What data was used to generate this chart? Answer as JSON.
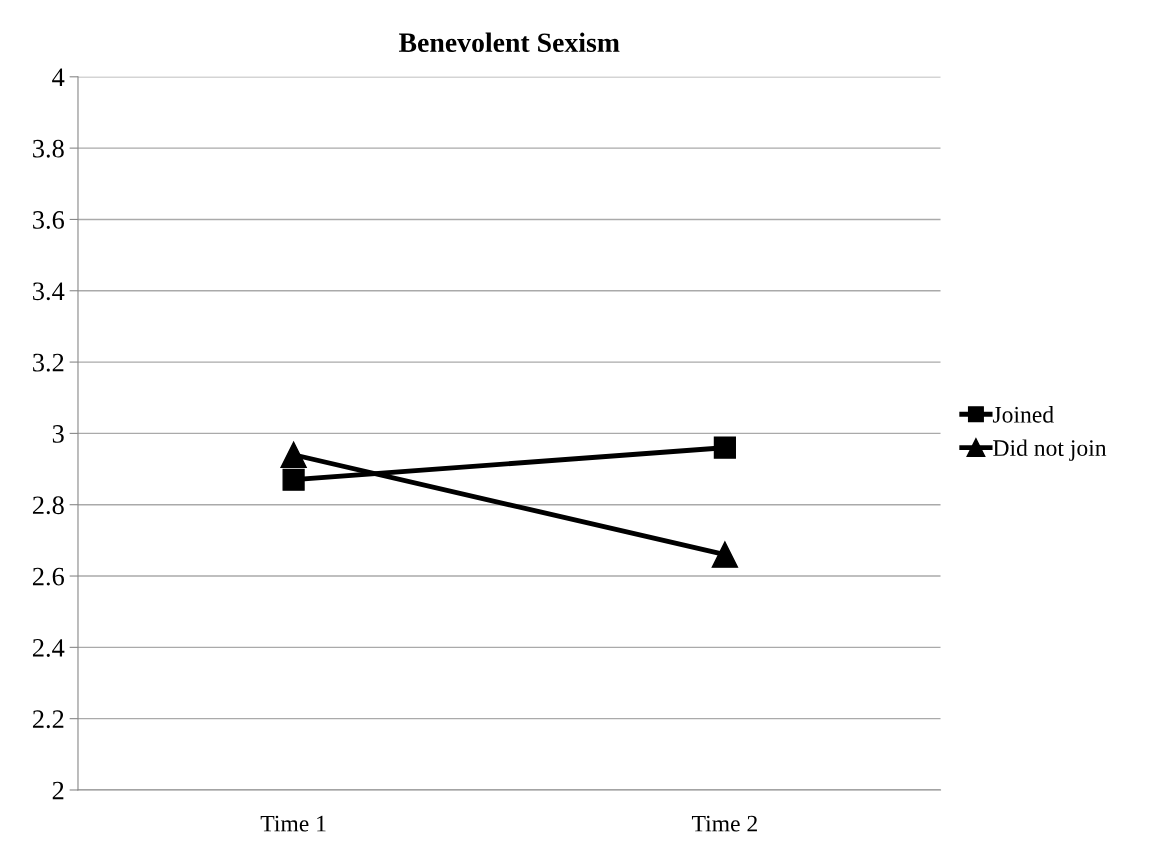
{
  "chart_data": {
    "type": "line",
    "title": "Benevolent Sexism",
    "categories": [
      "Time 1",
      "Time 2"
    ],
    "series": [
      {
        "name": "Joined",
        "color": "#000000",
        "values": [
          2.87,
          2.96
        ],
        "marker": "square"
      },
      {
        "name": "Did not join",
        "color": "#000000",
        "values": [
          2.94,
          2.66
        ],
        "marker": "triangle"
      }
    ],
    "ylim": [
      2,
      4
    ],
    "yticks": [
      2,
      2.2,
      2.4,
      2.6,
      2.8,
      3,
      3.2,
      3.4,
      3.6,
      3.8,
      4
    ],
    "grid": "y",
    "legend": "right",
    "line_style": "solid"
  }
}
